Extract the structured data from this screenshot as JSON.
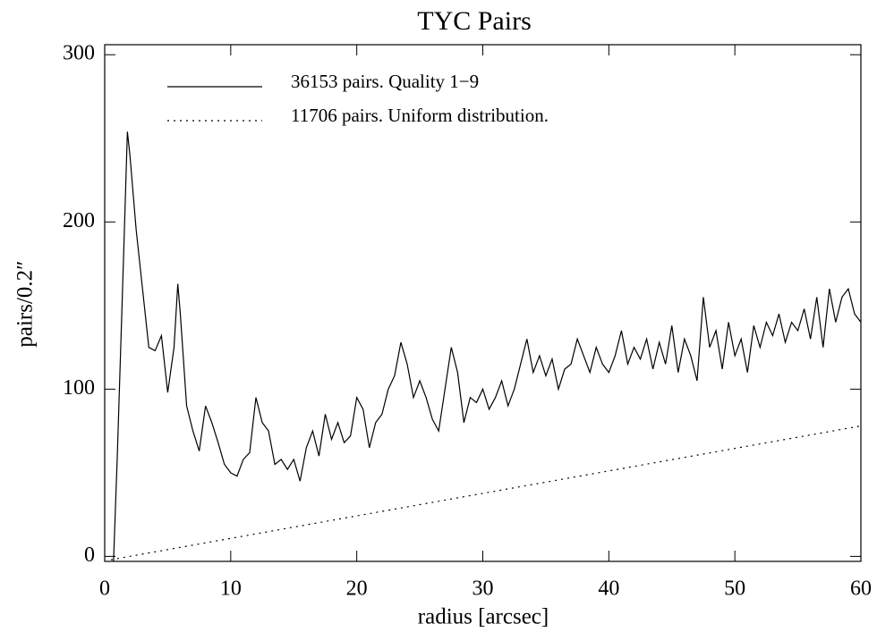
{
  "chart_data": {
    "type": "line",
    "title": "TYC Pairs",
    "x_label": "radius [arcsec]",
    "y_label": "pairs/0.2″",
    "xlim": [
      0,
      60
    ],
    "xticks": [
      0,
      10,
      20,
      30,
      40,
      50,
      60
    ],
    "ylim": [
      -3,
      306
    ],
    "yticks": [
      0,
      100,
      200,
      300
    ],
    "legend": "top-left",
    "series": [
      {
        "name": "36153 pairs. Quality 1−9",
        "color": "#000000",
        "style": "solid",
        "x": [
          0.7,
          1,
          1.5,
          1.8,
          2,
          2.5,
          3,
          3.5,
          4,
          4.5,
          5,
          5.5,
          5.8,
          6,
          6.5,
          7,
          7.5,
          8,
          8.5,
          9,
          9.5,
          10,
          10.5,
          11,
          11.5,
          12,
          12.5,
          13,
          13.5,
          14,
          14.5,
          15,
          15.5,
          16,
          16.5,
          17,
          17.5,
          18,
          18.5,
          19,
          19.5,
          20,
          20.5,
          21,
          21.5,
          22,
          22.5,
          23,
          23.5,
          24,
          24.5,
          25,
          25.5,
          26,
          26.5,
          27,
          27.5,
          28,
          28.5,
          29,
          29.5,
          30,
          30.5,
          31,
          31.5,
          32,
          32.5,
          33,
          33.5,
          34,
          34.5,
          35,
          35.5,
          36,
          36.5,
          37,
          37.5,
          38,
          38.5,
          39,
          39.5,
          40,
          40.5,
          41,
          41.5,
          42,
          42.5,
          43,
          43.5,
          44,
          44.5,
          45,
          45.5,
          46,
          46.5,
          47,
          47.5,
          48,
          48.5,
          49,
          49.5,
          50,
          50.5,
          51,
          51.5,
          52,
          52.5,
          53,
          53.5,
          54,
          54.5,
          55,
          55.5,
          56,
          56.5,
          57,
          57.5,
          58,
          58.5,
          59,
          59.5,
          60
        ],
        "values": [
          -3,
          60,
          180,
          254,
          240,
          195,
          160,
          125,
          123,
          132,
          98,
          125,
          163,
          145,
          90,
          75,
          63,
          90,
          80,
          68,
          55,
          50,
          48,
          58,
          62,
          95,
          80,
          75,
          55,
          58,
          52,
          58,
          45,
          65,
          75,
          60,
          85,
          70,
          80,
          68,
          72,
          95,
          88,
          65,
          80,
          85,
          100,
          108,
          128,
          115,
          95,
          105,
          95,
          82,
          75,
          100,
          125,
          110,
          80,
          95,
          92,
          100,
          88,
          95,
          105,
          90,
          100,
          115,
          130,
          110,
          120,
          108,
          118,
          100,
          112,
          115,
          130,
          120,
          110,
          125,
          115,
          110,
          120,
          135,
          115,
          125,
          118,
          130,
          112,
          128,
          115,
          138,
          110,
          130,
          120,
          105,
          155,
          125,
          135,
          112,
          140,
          120,
          130,
          110,
          138,
          125,
          140,
          132,
          145,
          128,
          140,
          135,
          148,
          130,
          155,
          125,
          160,
          140,
          155,
          160,
          145,
          140
        ]
      },
      {
        "name": "11706 pairs. Uniform distribution.",
        "color": "#000000",
        "style": "dotted",
        "x": [
          0.5,
          60
        ],
        "values": [
          -2,
          78
        ]
      }
    ]
  }
}
